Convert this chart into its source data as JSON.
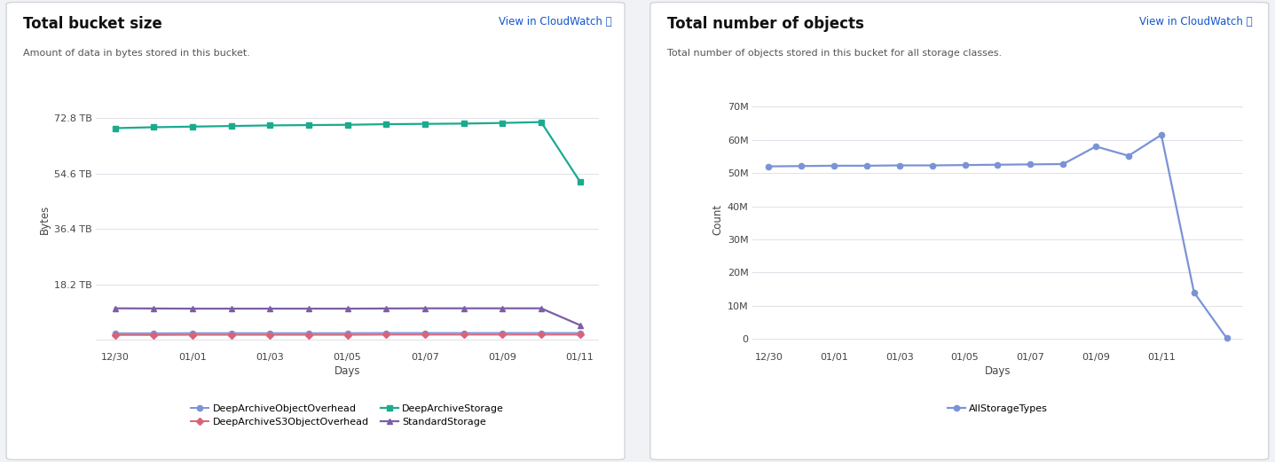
{
  "left_title": "Total bucket size",
  "left_subtitle": "Amount of data in bytes stored in this bucket.",
  "left_cloudwatch": "View in CloudWatch ⧉",
  "left_ylabel": "Bytes",
  "left_xlabel": "Days",
  "left_ytick_vals": [
    0,
    18.2,
    36.4,
    54.6,
    72.8
  ],
  "left_ytick_labels": [
    "",
    "18.2 TB",
    "36.4 TB",
    "54.6 TB",
    "72.8 TB"
  ],
  "left_ylim": [
    -3,
    82
  ],
  "left_x_labels": [
    "12/30",
    "01/01",
    "01/03",
    "01/05",
    "01/07",
    "01/09",
    "01/11"
  ],
  "left_x_positions": [
    0,
    2,
    4,
    6,
    8,
    10,
    12
  ],
  "deep_archive_storage": [
    69.5,
    69.8,
    70.0,
    70.2,
    70.4,
    70.5,
    70.6,
    70.8,
    70.9,
    71.0,
    71.2,
    71.5,
    52.0
  ],
  "deep_archive_storage_x": [
    0,
    1,
    2,
    3,
    4,
    5,
    6,
    7,
    8,
    9,
    10,
    11,
    12
  ],
  "standard_storage": [
    10.3,
    10.25,
    10.2,
    10.2,
    10.2,
    10.2,
    10.2,
    10.25,
    10.3,
    10.3,
    10.3,
    10.3,
    4.8
  ],
  "standard_storage_x": [
    0,
    1,
    2,
    3,
    4,
    5,
    6,
    7,
    8,
    9,
    10,
    11,
    12
  ],
  "deep_archive_object_overhead": [
    2.1,
    2.1,
    2.15,
    2.15,
    2.15,
    2.15,
    2.15,
    2.2,
    2.2,
    2.2,
    2.2,
    2.2,
    2.2
  ],
  "deep_archive_object_overhead_x": [
    0,
    1,
    2,
    3,
    4,
    5,
    6,
    7,
    8,
    9,
    10,
    11,
    12
  ],
  "deep_archive_s3": [
    1.55,
    1.55,
    1.6,
    1.6,
    1.6,
    1.6,
    1.6,
    1.65,
    1.65,
    1.65,
    1.65,
    1.65,
    1.65
  ],
  "deep_archive_s3_x": [
    0,
    1,
    2,
    3,
    4,
    5,
    6,
    7,
    8,
    9,
    10,
    11,
    12
  ],
  "right_title": "Total number of objects",
  "right_subtitle": "Total number of objects stored in this bucket for all storage classes.",
  "right_cloudwatch": "View in CloudWatch ⧉",
  "right_ylabel": "Count",
  "right_xlabel": "Days",
  "right_ytick_vals": [
    0,
    10,
    20,
    30,
    40,
    50,
    60,
    70
  ],
  "right_ytick_labels": [
    "0",
    "10M",
    "20M",
    "30M",
    "40M",
    "50M",
    "60M",
    "70M"
  ],
  "right_ylim": [
    -3,
    75
  ],
  "right_x_labels": [
    "12/30",
    "01/01",
    "01/03",
    "01/05",
    "01/07",
    "01/09",
    "01/11"
  ],
  "right_x_positions": [
    0,
    2,
    4,
    6,
    8,
    10,
    12
  ],
  "all_storage_types": [
    52.0,
    52.1,
    52.2,
    52.2,
    52.3,
    52.3,
    52.4,
    52.5,
    52.6,
    52.7,
    58.0,
    55.2,
    61.5,
    14.0,
    0.2
  ],
  "all_storage_types_x": [
    0,
    1,
    2,
    3,
    4,
    5,
    6,
    7,
    8,
    9,
    10,
    11,
    12,
    13,
    14
  ],
  "color_teal": "#1aab8e",
  "color_purple": "#7b5ea7",
  "color_blue": "#7b93d6",
  "color_red": "#d9637a",
  "color_right_blue": "#7b93d6",
  "bg_color": "#f0f2f5",
  "panel_bg": "#ffffff",
  "grid_color": "#dde1e8",
  "text_color": "#111111",
  "subtitle_color": "#555555",
  "cloudwatch_color": "#1155cc",
  "border_color": "#d0d4da"
}
